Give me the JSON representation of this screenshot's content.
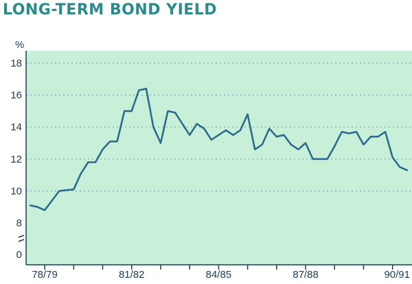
{
  "chart_data": {
    "type": "line",
    "title": "LONG-TERM BOND YIELD",
    "ylabel": "%",
    "xlabel": "",
    "ylim": [
      8,
      18
    ],
    "y_ticks": [
      8,
      10,
      12,
      14,
      16,
      18
    ],
    "y_ticks_bottom": "0",
    "axis_break": true,
    "grid": "horizontal-dotted",
    "x_tick_labels": [
      "78/79",
      "81/82",
      "84/85",
      "87/88",
      "90/91"
    ],
    "colors": {
      "background": "#c8f0d8",
      "line": "#2e6a8e",
      "grid": "#7aa8c0",
      "text": "#1b3b56",
      "title": "#2a8a8c"
    },
    "x_range": [
      1978.5,
      1991.6
    ],
    "series": [
      {
        "x": [
          1978.5,
          1978.75,
          1979.0,
          1979.25,
          1979.5,
          1979.75,
          1980.0,
          1980.25,
          1980.5,
          1980.75,
          1981.0,
          1981.25,
          1981.5,
          1981.75,
          1982.0,
          1982.25,
          1982.5,
          1982.75,
          1983.0,
          1983.25,
          1983.5,
          1983.75,
          1984.0,
          1984.25,
          1984.5,
          1984.75,
          1985.0,
          1985.25,
          1985.5,
          1985.75,
          1986.0,
          1986.25,
          1986.5,
          1986.75,
          1987.0,
          1987.25,
          1987.5,
          1987.75,
          1988.0,
          1988.25,
          1988.5,
          1988.75,
          1989.0,
          1989.25,
          1989.5,
          1989.75,
          1990.0,
          1990.25,
          1990.5,
          1990.75,
          1991.0,
          1991.25,
          1991.5
        ],
        "values": [
          9.1,
          9.0,
          8.8,
          9.4,
          10.0,
          10.05,
          10.1,
          11.1,
          11.8,
          11.8,
          12.6,
          13.1,
          13.1,
          15.0,
          15.0,
          16.3,
          16.4,
          14.0,
          13.0,
          15.0,
          14.9,
          14.2,
          13.5,
          14.2,
          13.9,
          13.2,
          13.5,
          13.8,
          13.5,
          13.8,
          14.8,
          12.6,
          12.9,
          13.9,
          13.4,
          13.5,
          12.9,
          12.6,
          13.0,
          12.0,
          12.0,
          12.0,
          12.8,
          13.7,
          13.6,
          13.7,
          12.9,
          13.4,
          13.4,
          13.7,
          12.1,
          11.5,
          11.3
        ]
      }
    ]
  }
}
